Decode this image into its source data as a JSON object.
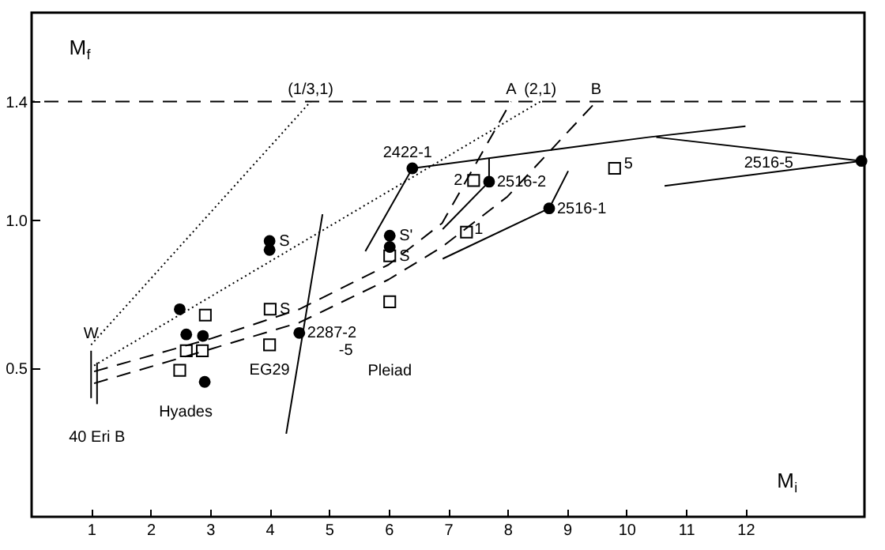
{
  "chart_data": {
    "type": "scatter",
    "xlabel": "M$_{i}$",
    "ylabel": "M$_{f}$",
    "xlim": [
      0,
      14
    ],
    "ylim": [
      0,
      1.7
    ],
    "xticks": [
      1,
      2,
      3,
      4,
      5,
      6,
      7,
      8,
      9,
      10,
      11,
      12
    ],
    "yticks": [
      {
        "value": 0.5,
        "label": "0.5"
      },
      {
        "value": 1,
        "label": "1.0"
      },
      {
        "value": 1.4,
        "label": "1.4"
      }
    ],
    "grid": false,
    "series": [
      {
        "marker": "circle",
        "color": "#000000",
        "x": [
          2.49,
          2.6,
          2.88,
          2.91,
          4.0,
          4.0,
          4.5,
          6.02,
          6.02,
          6.4,
          7.69,
          8.7,
          13.95
        ],
        "values": [
          0.7,
          0.615,
          0.61,
          0.455,
          0.93,
          0.9,
          0.62,
          0.948,
          0.91,
          1.175,
          1.13,
          1.04,
          1.2
        ]
      },
      {
        "marker": "square",
        "color": "#000000",
        "x": [
          2.92,
          2.6,
          2.87,
          2.49,
          4.01,
          4.0,
          6.02,
          6.02,
          7.43,
          7.31,
          9.8
        ],
        "values": [
          0.68,
          0.56,
          0.56,
          0.494,
          0.7,
          0.58,
          0.88,
          0.725,
          1.134,
          0.96,
          1.175
        ]
      },
      {
        "type": "line",
        "line_style": "dotted",
        "color": "#000000",
        "x": [
          1.0,
          4.69
        ],
        "values": [
          0.58,
          1.4
        ]
      },
      {
        "type": "line",
        "line_style": "dotted",
        "color": "#000000",
        "x": [
          1.05,
          8.55
        ],
        "values": [
          0.51,
          1.4
        ]
      },
      {
        "type": "line",
        "line_style": "dashed",
        "color": "#000000",
        "x": [
          1.05,
          3.0,
          4.5,
          6.0,
          6.9,
          8.06
        ],
        "values": [
          0.49,
          0.6,
          0.7,
          0.85,
          0.99,
          1.4
        ]
      },
      {
        "type": "line",
        "line_style": "dashed",
        "color": "#000000",
        "x": [
          1.05,
          3.0,
          4.5,
          6.0,
          6.9,
          8.0,
          9.49
        ],
        "values": [
          0.45,
          0.565,
          0.655,
          0.8,
          0.91,
          1.08,
          1.4
        ]
      },
      {
        "type": "line",
        "line_style": "solid",
        "color": "#000000",
        "x": [
          4.28,
          4.89
        ],
        "values": [
          0.28,
          1.02
        ]
      },
      {
        "type": "line",
        "line_style": "solid",
        "color": "#000000",
        "x": [
          5.61,
          6.4
        ],
        "values": [
          0.895,
          1.175
        ]
      },
      {
        "type": "line",
        "line_style": "solid",
        "color": "#000000",
        "x": [
          6.4,
          10.37,
          12.0
        ],
        "values": [
          1.175,
          1.28,
          1.317
        ]
      },
      {
        "type": "line",
        "line_style": "solid",
        "color": "#000000",
        "x": [
          10.5,
          13.95
        ],
        "values": [
          1.28,
          1.2
        ]
      },
      {
        "type": "line",
        "line_style": "solid",
        "color": "#000000",
        "x": [
          10.64,
          13.95
        ],
        "values": [
          1.116,
          1.2
        ]
      },
      {
        "type": "line",
        "line_style": "solid",
        "color": "#000000",
        "x": [
          7.69,
          7.69
        ],
        "values": [
          1.21,
          1.13
        ]
      },
      {
        "type": "line",
        "line_style": "solid",
        "color": "#000000",
        "x": [
          6.91,
          7.69
        ],
        "values": [
          0.97,
          1.13
        ]
      },
      {
        "type": "line",
        "line_style": "solid",
        "color": "#000000",
        "x": [
          6.91,
          8.7,
          9.02
        ],
        "values": [
          0.87,
          1.04,
          1.166
        ]
      },
      {
        "type": "line",
        "line_style": "solid",
        "color": "#000000",
        "x": [
          1.0,
          1.0
        ],
        "values": [
          0.4,
          0.56
        ]
      },
      {
        "type": "line",
        "line_style": "solid",
        "color": "#000000",
        "x": [
          1.1,
          1.1
        ],
        "values": [
          0.38,
          0.52
        ]
      }
    ],
    "ref_lines": [
      {
        "axis": "y",
        "value": 1.4,
        "line_style": "dashed",
        "color": "#000000"
      }
    ],
    "annotations": [
      {
        "text": "(1/3,1)",
        "x": 4.69,
        "y": 1.4
      },
      {
        "text": "A",
        "x": 8.06,
        "y": 1.4
      },
      {
        "text": "(2,1)",
        "x": 8.55,
        "y": 1.4
      },
      {
        "text": "B",
        "x": 9.49,
        "y": 1.4
      },
      {
        "text": "2422-1",
        "x": 6.4,
        "y": 1.175
      },
      {
        "text": "2",
        "x": 7.43,
        "y": 1.134
      },
      {
        "text": "2516-2",
        "x": 7.69,
        "y": 1.13
      },
      {
        "text": "2516-1",
        "x": 8.7,
        "y": 1.04
      },
      "2516-5",
      {
        "text": "5",
        "x": 9.8,
        "y": 1.175
      },
      {
        "text": "1",
        "x": 7.31,
        "y": 0.96
      },
      {
        "text": "S",
        "x": 4.0,
        "y": 0.93
      },
      {
        "text": "S",
        "x": 4.01,
        "y": 0.7
      },
      {
        "text": "S'",
        "x": 6.02,
        "y": 0.948
      },
      {
        "text": "S",
        "x": 6.02,
        "y": 0.88
      },
      {
        "text": "2287-2",
        "x": 4.5,
        "y": 0.62
      },
      {
        "text": "-5",
        "x": 4.5,
        "y": 0.62
      },
      {
        "text": "EG29",
        "x": 4.0,
        "y": 0.58
      },
      "Pleiad",
      {
        "text": "Hyades",
        "x": 2.91,
        "y": 0.455
      },
      {
        "text": "40 Eri B",
        "x": 1.1,
        "y": 0.38
      },
      {
        "text": "W",
        "x": 1.0,
        "y": 0.58
      }
    ]
  }
}
